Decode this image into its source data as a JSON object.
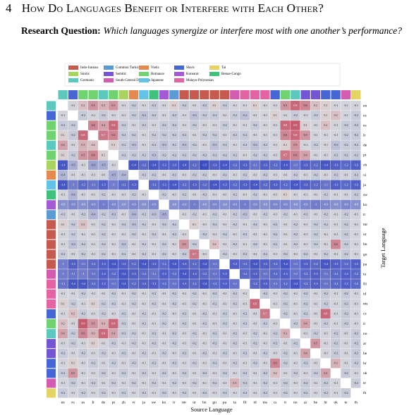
{
  "header": {
    "number": "4",
    "title": "How Do Languages Benefit or Interfere with Each Other?"
  },
  "question": {
    "label": "Research Question:",
    "text": "Which languages synergize or interfere most with one another’s performance?"
  },
  "chart_data": {
    "type": "heatmap",
    "xlabel": "Source Language",
    "ylabel": "Target Language",
    "color_range": [
      -1.5,
      1.5
    ],
    "families": [
      {
        "name": "Indo-Iranian",
        "color": "#c65a4e"
      },
      {
        "name": "Sinitic",
        "color": "#a9d45f"
      },
      {
        "name": "Germanic",
        "color": "#5cc9be"
      },
      {
        "name": "Common Turkic",
        "color": "#5b9bd5"
      },
      {
        "name": "Semitic",
        "color": "#7455d6"
      },
      {
        "name": "South-Central Dravidian",
        "color": "#d45cb0"
      },
      {
        "name": "Vietic",
        "color": "#e6894f"
      },
      {
        "name": "Romance",
        "color": "#6fd46f"
      },
      {
        "name": "Japanese",
        "color": "#62c3e6"
      },
      {
        "name": "Slavic",
        "color": "#4566d4"
      },
      {
        "name": "Koreanic",
        "color": "#a559d6"
      },
      {
        "name": "Malayo-Polynesian",
        "color": "#e663a3"
      },
      {
        "name": "Tai",
        "color": "#e3d464"
      },
      {
        "name": "Benue-Congo",
        "color": "#40c27a"
      }
    ],
    "languages": [
      {
        "code": "en",
        "family": "Germanic"
      },
      {
        "code": "ru",
        "family": "Slavic"
      },
      {
        "code": "es",
        "family": "Romance"
      },
      {
        "code": "fr",
        "family": "Romance"
      },
      {
        "code": "de",
        "family": "Germanic"
      },
      {
        "code": "pt",
        "family": "Romance"
      },
      {
        "code": "zh",
        "family": "Sinitic"
      },
      {
        "code": "vi",
        "family": "Vietic"
      },
      {
        "code": "ja",
        "family": "Japanese"
      },
      {
        "code": "sw",
        "family": "Benue-Congo"
      },
      {
        "code": "ko",
        "family": "Koreanic"
      },
      {
        "code": "tr",
        "family": "Common Turkic"
      },
      {
        "code": "mr",
        "family": "Indo-Iranian"
      },
      {
        "code": "ur",
        "family": "Indo-Iranian"
      },
      {
        "code": "bn",
        "family": "Indo-Iranian"
      },
      {
        "code": "gu",
        "family": "Indo-Iranian"
      },
      {
        "code": "pa",
        "family": "Indo-Iranian"
      },
      {
        "code": "ta",
        "family": "South-Central Dravidian"
      },
      {
        "code": "fil",
        "family": "Malayo-Polynesian"
      },
      {
        "code": "id",
        "family": "Malayo-Polynesian"
      },
      {
        "code": "ms",
        "family": "Malayo-Polynesian"
      },
      {
        "code": "cs",
        "family": "Slavic"
      },
      {
        "code": "it",
        "family": "Romance"
      },
      {
        "code": "no",
        "family": "Germanic"
      },
      {
        "code": "ar",
        "family": "Semitic"
      },
      {
        "code": "he",
        "family": "Semitic"
      },
      {
        "code": "hr",
        "family": "Slavic"
      },
      {
        "code": "uk",
        "family": "Slavic"
      },
      {
        "code": "te",
        "family": "South-Central Dravidian"
      },
      {
        "code": "th",
        "family": "Tai"
      }
    ],
    "values": [
      [
        null,
        -0.1,
        0.2,
        0.5,
        0.3,
        0.5,
        -0.1,
        -0.2,
        -0.1,
        -0.2,
        -0.1,
        0.1,
        -0.2,
        -0.1,
        -0.2,
        0.1,
        -0.2,
        -0.1,
        -0.1,
        0.1,
        -0.1,
        -0.1,
        0.5,
        0.8,
        0.6,
        0.2,
        0.1,
        -0.1,
        -0.1,
        -0.1
      ],
      [
        -0.1,
        null,
        -0.2,
        -0.1,
        -0.2,
        -0.1,
        -0.1,
        -0.2,
        -0.3,
        -0.2,
        -0.1,
        -0.2,
        -0.1,
        -0.3,
        -0.2,
        -0.2,
        -0.1,
        -0.2,
        -0.3,
        -0.1,
        -0.1,
        0.1,
        -0.1,
        -0.2,
        -0.1,
        -0.2,
        0.1,
        0.2,
        -0.1,
        -0.2
      ],
      [
        -0.2,
        -0.2,
        null,
        0.6,
        0.4,
        0.8,
        -0.2,
        -0.1,
        -0.2,
        -0.1,
        -0.2,
        -0.2,
        -0.1,
        -0.2,
        -0.1,
        -0.1,
        -0.2,
        -0.1,
        -0.1,
        -0.2,
        -0.1,
        -0.1,
        0.8,
        0.9,
        0.1,
        -0.1,
        0.2,
        -0.1,
        -0.2,
        -0.2
      ],
      [
        0.1,
        -0.2,
        0.8,
        null,
        0.7,
        0.6,
        -0.2,
        -0.2,
        -0.1,
        -0.2,
        -0.2,
        -0.2,
        -0.2,
        -0.1,
        -0.2,
        -0.2,
        -0.1,
        -0.2,
        -0.2,
        -0.1,
        -0.1,
        -0.1,
        0.6,
        0.8,
        0.5,
        -0.1,
        -0.1,
        -0.1,
        -0.2,
        -0.2
      ],
      [
        0.4,
        -0.1,
        0.3,
        0.2,
        null,
        0.1,
        -0.2,
        -0.3,
        -0.1,
        -0.2,
        -0.3,
        -0.2,
        -0.3,
        -0.2,
        -0.1,
        -0.3,
        -0.2,
        -0.1,
        -0.2,
        -0.3,
        -0.2,
        -0.1,
        0.1,
        0.5,
        -0.1,
        -0.2,
        -0.1,
        -0.3,
        -0.2,
        -0.2
      ],
      [
        0.1,
        -0.2,
        0.5,
        0.6,
        0.1,
        null,
        -0.2,
        -0.2,
        -0.2,
        -0.3,
        -0.2,
        -0.2,
        -0.2,
        -0.2,
        -0.2,
        -0.2,
        -0.2,
        -0.2,
        -0.1,
        -0.2,
        -0.2,
        -0.1,
        0.7,
        0.6,
        0.4,
        -0.1,
        -0.1,
        -0.2,
        -0.2,
        -0.2
      ],
      [
        -1.4,
        -0.5,
        -0.1,
        -0.6,
        -0.5,
        -0.1,
        null,
        -1.4,
        -1.2,
        -1.4,
        -1.3,
        -1.3,
        -1.4,
        -1.2,
        -1.5,
        -1.3,
        -1.4,
        -1.2,
        -1.3,
        -1.1,
        -1.3,
        -1.2,
        -1.4,
        -1.1,
        -1.3,
        -1.2,
        -1.4,
        -1.3,
        -1.2,
        -1.3
      ],
      [
        -0.4,
        -0.1,
        -0.1,
        -0.1,
        -0.1,
        -0.5,
        -0.4,
        null,
        -0.2,
        -0.2,
        -0.1,
        -0.2,
        -0.1,
        -0.2,
        -0.2,
        -0.1,
        -0.2,
        -0.1,
        -0.2,
        -0.1,
        -0.2,
        -0.1,
        -0.1,
        -0.2,
        -0.1,
        -0.2,
        -0.1,
        -0.2,
        -0.1,
        -0.2
      ],
      [
        -1.4,
        -1.0,
        -1.2,
        -1.1,
        -1.3,
        -1.0,
        -1.2,
        -1.3,
        null,
        -1.2,
        -1.3,
        -1.4,
        -1.2,
        -1.3,
        -1.2,
        -1.4,
        -1.3,
        -1.2,
        -1.3,
        -1.4,
        -1.2,
        -1.3,
        -1.2,
        -1.4,
        -1.3,
        -1.2,
        -1.1,
        -1.3,
        -1.2,
        -1.3
      ],
      [
        -0.1,
        -0.4,
        -0.1,
        -0.1,
        -0.2,
        -0.1,
        -0.1,
        -0.2,
        -0.1,
        null,
        -0.2,
        -0.1,
        -0.2,
        -0.1,
        -0.2,
        -0.1,
        -0.1,
        -0.2,
        -0.1,
        -0.2,
        -0.1,
        -0.1,
        0.1,
        -0.1,
        -0.1,
        -0.1,
        -0.2,
        -0.1,
        -0.1,
        -0.2
      ],
      [
        -0.8,
        -0.9,
        -0.8,
        -0.9,
        -1.0,
        -0.9,
        -0.8,
        -0.9,
        -0.8,
        -0.9,
        null,
        -0.8,
        -0.9,
        -1.0,
        -0.8,
        -0.9,
        -0.8,
        -0.9,
        -1.0,
        -0.9,
        -0.8,
        -0.9,
        -0.9,
        -0.8,
        -0.9,
        -1.0,
        -0.9,
        -0.8,
        -0.9,
        -0.8
      ],
      [
        -0.2,
        -0.1,
        -0.2,
        -0.4,
        -0.2,
        -0.3,
        -0.1,
        -0.4,
        -0.2,
        -0.3,
        -0.5,
        null,
        -0.1,
        -0.2,
        -0.1,
        -0.2,
        -0.1,
        -0.2,
        -0.3,
        -0.1,
        -0.2,
        -0.1,
        -0.2,
        -0.1,
        -0.2,
        -0.1,
        -0.2,
        -0.1,
        -0.2,
        -0.1
      ],
      [
        0.1,
        -0.2,
        0.2,
        -0.1,
        -0.2,
        -0.1,
        -0.2,
        -0.3,
        -0.2,
        -0.1,
        -0.2,
        -0.2,
        null,
        0.1,
        -0.1,
        -0.2,
        -0.1,
        -0.2,
        -0.1,
        -0.2,
        -0.1,
        -0.2,
        -0.1,
        -0.2,
        -0.1,
        -0.2,
        -0.2,
        -0.1,
        -0.2,
        -0.1
      ],
      [
        -0.1,
        -0.2,
        -0.1,
        -0.1,
        -0.2,
        -0.1,
        -0.1,
        -0.2,
        -0.1,
        -0.2,
        -0.1,
        -0.2,
        -0.1,
        null,
        -0.2,
        -0.1,
        -0.2,
        -0.1,
        -0.2,
        -0.1,
        -0.1,
        -0.2,
        -0.1,
        -0.2,
        -0.1,
        -0.2,
        -0.1,
        -0.1,
        -0.2,
        -0.1
      ],
      [
        -0.1,
        -0.3,
        -0.2,
        -0.1,
        -0.2,
        -0.1,
        -0.3,
        -0.1,
        -0.2,
        -0.1,
        -0.2,
        -0.1,
        0.5,
        -0.2,
        null,
        0.2,
        -0.1,
        -0.2,
        -0.1,
        -0.2,
        -0.1,
        -0.2,
        -0.1,
        -0.2,
        -0.1,
        -0.2,
        -0.1,
        0.6,
        -0.2,
        -0.1
      ],
      [
        -0.2,
        -0.1,
        -0.2,
        -0.1,
        -0.2,
        -0.1,
        -0.2,
        -0.1,
        -0.2,
        -0.1,
        -0.2,
        -0.1,
        -0.2,
        0.7,
        -0.1,
        null,
        -0.2,
        -0.1,
        -0.2,
        -0.1,
        -0.2,
        -0.1,
        -0.2,
        -0.1,
        -0.2,
        -0.1,
        -0.2,
        -0.1,
        -0.2,
        -0.1
      ],
      [
        -1.0,
        -1.3,
        -1.1,
        -1.2,
        -1.3,
        -1.4,
        -1.3,
        -1.2,
        -1.4,
        -1.3,
        -1.2,
        -1.4,
        -1.3,
        -1.2,
        -1.4,
        -1.1,
        null,
        -1.3,
        -1.2,
        -1.4,
        -1.3,
        -1.2,
        -1.4,
        -1.1,
        -1.3,
        -1.2,
        -1.4,
        -1.3,
        -1.2,
        -1.3
      ],
      [
        -1.0,
        -1.1,
        -1.0,
        -1.1,
        -1.3,
        -1.2,
        -1.4,
        -1.3,
        -1.2,
        -1.1,
        -1.3,
        -1.2,
        -1.4,
        -1.3,
        -1.2,
        -1.1,
        -1.3,
        null,
        -1.2,
        -1.3,
        -1.1,
        -1.2,
        -1.3,
        -1.1,
        -1.2,
        -1.3,
        -1.1,
        -1.2,
        -1.3,
        -1.2
      ],
      [
        -1.1,
        -1.4,
        -1.4,
        -1.2,
        -1.3,
        -1.1,
        -1.4,
        -1.2,
        -1.3,
        -1.3,
        -1.2,
        -1.1,
        -1.3,
        -1.2,
        -1.4,
        -1.2,
        -1.3,
        -1.1,
        null,
        -1.2,
        -1.3,
        -1.1,
        -1.2,
        -1.4,
        -1.2,
        -1.3,
        -1.1,
        -1.2,
        -1.3,
        -1.2
      ],
      [
        -0.1,
        -0.1,
        -0.2,
        -0.1,
        -0.1,
        -0.2,
        -0.1,
        -0.2,
        -0.1,
        -0.2,
        -0.1,
        -0.2,
        -0.1,
        -0.2,
        -0.1,
        -0.2,
        -0.1,
        -0.2,
        -0.1,
        null,
        -0.2,
        -0.1,
        -0.2,
        -0.1,
        -0.2,
        -0.1,
        -0.2,
        -0.1,
        -0.2,
        -0.1
      ],
      [
        0.1,
        -0.2,
        -0.1,
        0.1,
        -0.2,
        -0.2,
        -0.1,
        -0.2,
        -0.1,
        -0.2,
        -0.1,
        -0.2,
        -0.1,
        -0.2,
        -0.1,
        -0.2,
        -0.1,
        -0.2,
        -0.1,
        0.8,
        null,
        -0.1,
        -0.2,
        -0.1,
        -0.2,
        -0.1,
        -0.2,
        -0.1,
        -0.2,
        -0.1
      ],
      [
        -0.1,
        0.2,
        -0.2,
        -0.1,
        -0.2,
        -0.1,
        -0.2,
        -0.1,
        -0.2,
        -0.1,
        -0.2,
        -0.1,
        -0.2,
        -0.1,
        -0.2,
        -0.1,
        -0.2,
        -0.1,
        -0.2,
        -0.1,
        0.7,
        null,
        -0.2,
        -0.1,
        -0.2,
        -0.1,
        0.8,
        -0.1,
        -0.2,
        -0.1
      ],
      [
        0.2,
        -0.1,
        0.9,
        0.5,
        0.3,
        0.8,
        -0.2,
        -0.1,
        -0.2,
        -0.1,
        -0.2,
        -0.1,
        -0.2,
        -0.1,
        -0.2,
        -0.1,
        -0.2,
        -0.1,
        -0.2,
        -0.1,
        -0.2,
        -0.1,
        null,
        -0.2,
        0.4,
        -0.1,
        -0.2,
        -0.1,
        -0.2,
        -0.1
      ],
      [
        0.4,
        -0.2,
        0.6,
        0.3,
        0.8,
        0.4,
        -0.2,
        -0.2,
        -0.1,
        -0.2,
        -0.1,
        -0.2,
        -0.1,
        -0.2,
        -0.1,
        -0.2,
        -0.1,
        -0.2,
        -0.1,
        -0.2,
        -0.1,
        -0.2,
        0.3,
        null,
        -0.1,
        -0.2,
        -0.1,
        -0.2,
        -0.1,
        -0.2
      ],
      [
        -0.1,
        -0.2,
        -0.1,
        0.1,
        -0.1,
        -0.2,
        -0.1,
        -0.2,
        -0.1,
        -0.2,
        -0.1,
        -0.2,
        -0.1,
        -0.2,
        -0.1,
        -0.2,
        -0.1,
        -0.2,
        -0.1,
        -0.2,
        -0.1,
        -0.2,
        -0.1,
        -0.2,
        null,
        0.5,
        -0.1,
        -0.2,
        -0.1,
        -0.2
      ],
      [
        -0.2,
        -0.1,
        -0.2,
        -0.1,
        -0.2,
        -0.1,
        -0.2,
        -0.1,
        -0.2,
        -0.1,
        -0.2,
        -0.1,
        -0.2,
        -0.1,
        -0.2,
        -0.1,
        -0.2,
        -0.1,
        -0.2,
        -0.1,
        -0.2,
        -0.1,
        -0.2,
        -0.1,
        0.4,
        null,
        -0.1,
        -0.2,
        -0.1,
        -0.2
      ],
      [
        -0.1,
        0.1,
        -0.1,
        -0.2,
        -0.1,
        -0.2,
        -0.1,
        -0.2,
        -0.1,
        -0.2,
        -0.1,
        -0.2,
        -0.1,
        -0.2,
        -0.1,
        -0.2,
        -0.1,
        -0.2,
        -0.1,
        -0.2,
        -0.1,
        0.6,
        -0.2,
        -0.1,
        -0.2,
        -0.1,
        null,
        0.3,
        -0.1,
        -0.2
      ],
      [
        -0.2,
        0.5,
        -0.1,
        -0.1,
        -0.2,
        -0.1,
        -0.2,
        -0.1,
        -0.2,
        -0.1,
        -0.2,
        -0.1,
        -0.2,
        -0.1,
        -0.2,
        -0.1,
        -0.2,
        -0.1,
        -0.2,
        -0.1,
        -0.2,
        0.2,
        -0.1,
        -0.2,
        -0.1,
        -0.2,
        0.4,
        null,
        -0.2,
        -0.1
      ],
      [
        -0.1,
        -0.2,
        -0.1,
        -0.2,
        -0.1,
        -0.2,
        -0.1,
        -0.2,
        -0.1,
        -0.2,
        -0.1,
        -0.2,
        -0.1,
        -0.2,
        -0.1,
        -0.2,
        -0.1,
        0.3,
        -0.2,
        -0.1,
        -0.2,
        -0.1,
        -0.2,
        -0.1,
        -0.2,
        -0.1,
        -0.2,
        -0.1,
        null,
        -0.2
      ],
      [
        -0.2,
        -0.1,
        -0.2,
        -0.1,
        -0.2,
        -0.1,
        -0.2,
        -0.1,
        -0.2,
        -0.1,
        -0.2,
        -0.1,
        -0.2,
        -0.1,
        -0.2,
        -0.1,
        -0.2,
        -0.1,
        -0.2,
        -0.1,
        -0.2,
        -0.1,
        -0.2,
        -0.1,
        -0.2,
        -0.1,
        -0.2,
        -0.1,
        -0.2,
        null
      ]
    ]
  }
}
